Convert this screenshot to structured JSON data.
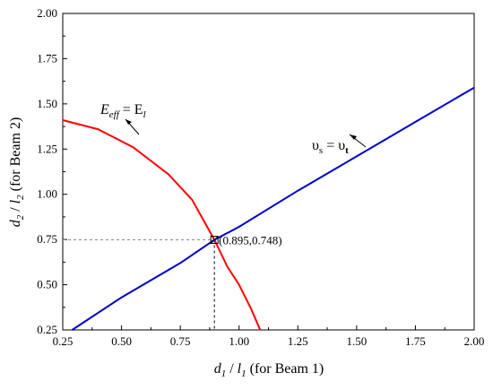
{
  "chart_data": {
    "type": "line",
    "title": "",
    "xlabel": {
      "var": "d",
      "var_sub": "1",
      "sep": " / ",
      "den": "l",
      "den_sub": "1",
      "suffix": " (for Beam 1)"
    },
    "ylabel": {
      "var": "d",
      "var_sub": "2",
      "sep": " / ",
      "den": "l",
      "den_sub": "2",
      "suffix": " (for Beam 2)"
    },
    "xlim": [
      0.25,
      2.0
    ],
    "ylim": [
      0.25,
      2.0
    ],
    "xticks": [
      "0.25",
      "0.50",
      "0.75",
      "1.00",
      "1.25",
      "1.50",
      "1.75",
      "2.00"
    ],
    "yticks": [
      "0.25",
      "0.50",
      "0.75",
      "1.00",
      "1.25",
      "1.50",
      "1.75",
      "2.00"
    ],
    "grid": false,
    "colors": {
      "red_curve": "#ff0000",
      "blue_line": "#0000cc",
      "guide": "#888888"
    },
    "series": [
      {
        "label_main": "E",
        "label_sub": "eff",
        "label_eq": " = E",
        "label_sub2": "l",
        "color": "#ff0000",
        "x": [
          0.25,
          0.4,
          0.55,
          0.7,
          0.8,
          0.895,
          0.95,
          1.0,
          1.05,
          1.09
        ],
        "y": [
          1.41,
          1.36,
          1.26,
          1.11,
          0.97,
          0.748,
          0.6,
          0.5,
          0.37,
          0.25
        ]
      },
      {
        "label_main": "υ",
        "label_sub": "s",
        "label_eq": " = υ",
        "label_sub2": "t",
        "color": "#0000cc",
        "x": [
          0.29,
          0.5,
          0.75,
          0.895,
          1.0,
          1.25,
          1.5,
          1.75,
          2.0
        ],
        "y": [
          0.25,
          0.43,
          0.62,
          0.748,
          0.82,
          1.02,
          1.21,
          1.4,
          1.59
        ]
      }
    ],
    "intersection": {
      "x": 0.895,
      "y": 0.748,
      "label": "(0.895,0.748)"
    }
  }
}
